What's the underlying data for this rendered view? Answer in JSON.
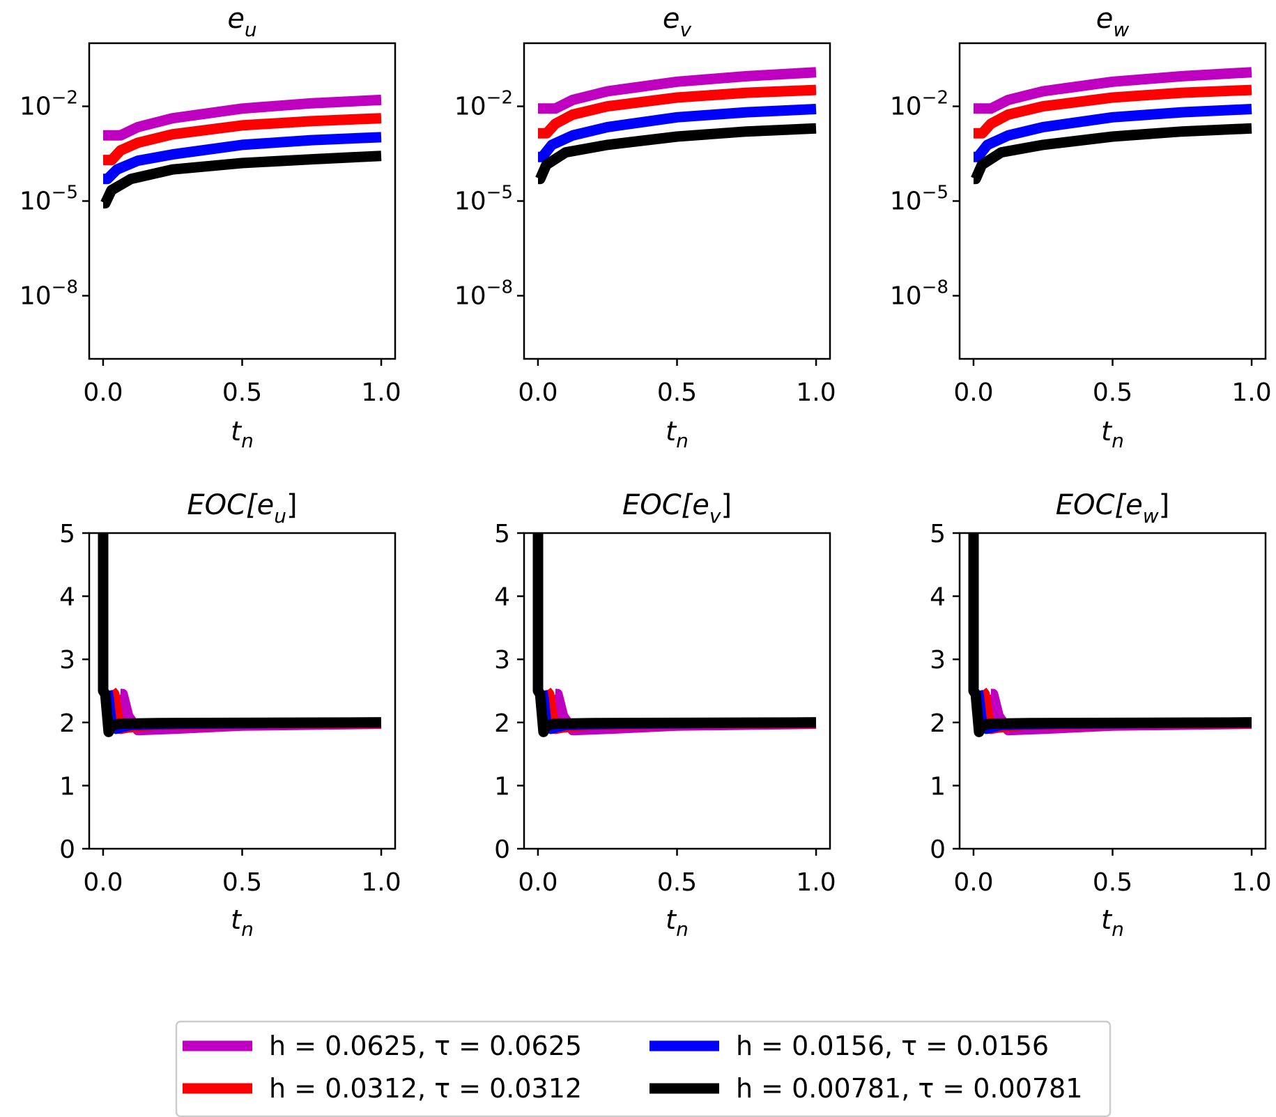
{
  "figure": {
    "legend": {
      "entries": [
        {
          "name": "h = 0.0625, τ = 0.0625",
          "color": "#c000c0"
        },
        {
          "name": "h = 0.0156, τ = 0.0156",
          "color": "#0000ff"
        },
        {
          "name": "h = 0.0312, τ = 0.0312",
          "color": "#ff0000"
        },
        {
          "name": "h = 0.00781, τ = 0.00781",
          "color": "#000000"
        }
      ]
    }
  },
  "chart_data": [
    {
      "type": "line",
      "title": "e_u",
      "xlabel": "t_n",
      "ylabel": "",
      "yscale": "log",
      "xlim": [
        -0.05,
        1.05
      ],
      "ylim": [
        1e-10,
        1
      ],
      "xticks": [
        "0.0",
        "0.5",
        "1.0"
      ],
      "yticks": [
        {
          "value": 0.01,
          "base": "10",
          "exp": "−2"
        },
        {
          "value": 1e-05,
          "base": "10",
          "exp": "−5"
        },
        {
          "value": 1e-08,
          "base": "10",
          "exp": "−8"
        }
      ],
      "series": [
        {
          "name": "h = 0.0625, τ = 0.0625",
          "color": "#c000c0",
          "x": [
            0,
            0.0625,
            0.125,
            0.25,
            0.5,
            0.75,
            1.0
          ],
          "y": [
            0.0012,
            0.0012,
            0.0022,
            0.0042,
            0.0085,
            0.0125,
            0.016
          ]
        },
        {
          "name": "h = 0.0312, τ = 0.0312",
          "color": "#ff0000",
          "x": [
            0,
            0.0312,
            0.0625,
            0.125,
            0.25,
            0.5,
            0.75,
            1.0
          ],
          "y": [
            0.0002,
            0.0002,
            0.0004,
            0.0007,
            0.0013,
            0.0025,
            0.0034,
            0.0042
          ]
        },
        {
          "name": "h = 0.0156, τ = 0.0156",
          "color": "#0000ff",
          "x": [
            0,
            0.0156,
            0.05,
            0.125,
            0.25,
            0.5,
            0.75,
            1.0
          ],
          "y": [
            5e-05,
            5e-05,
            0.0001,
            0.00019,
            0.0003,
            0.0006,
            0.00085,
            0.00105
          ]
        },
        {
          "name": "h = 0.00781, τ = 0.00781",
          "color": "#000000",
          "x": [
            0,
            0.0078,
            0.03,
            0.1,
            0.25,
            0.5,
            0.75,
            1.0
          ],
          "y": [
            8.5e-06,
            8.5e-06,
            2.2e-05,
            5e-05,
            0.0001,
            0.00016,
            0.00021,
            0.00027
          ]
        }
      ]
    },
    {
      "type": "line",
      "title": "e_v",
      "xlabel": "t_n",
      "ylabel": "",
      "yscale": "log",
      "xlim": [
        -0.05,
        1.05
      ],
      "ylim": [
        1e-10,
        1
      ],
      "xticks": [
        "0.0",
        "0.5",
        "1.0"
      ],
      "yticks": [
        {
          "value": 0.01,
          "base": "10",
          "exp": "−2"
        },
        {
          "value": 1e-05,
          "base": "10",
          "exp": "−5"
        },
        {
          "value": 1e-08,
          "base": "10",
          "exp": "−8"
        }
      ],
      "series": [
        {
          "name": "h = 0.0625, τ = 0.0625",
          "color": "#c000c0",
          "x": [
            0,
            0.0625,
            0.125,
            0.25,
            0.5,
            0.75,
            1.0
          ],
          "y": [
            0.0085,
            0.0085,
            0.016,
            0.03,
            0.06,
            0.09,
            0.12
          ]
        },
        {
          "name": "h = 0.0312, τ = 0.0312",
          "color": "#ff0000",
          "x": [
            0,
            0.0312,
            0.0625,
            0.125,
            0.25,
            0.5,
            0.75,
            1.0
          ],
          "y": [
            0.0014,
            0.0014,
            0.0028,
            0.0055,
            0.01,
            0.019,
            0.027,
            0.033
          ]
        },
        {
          "name": "h = 0.0156, τ = 0.0156",
          "color": "#0000ff",
          "x": [
            0,
            0.0156,
            0.05,
            0.125,
            0.25,
            0.5,
            0.75,
            1.0
          ],
          "y": [
            0.00025,
            0.00025,
            0.0006,
            0.0012,
            0.0022,
            0.0045,
            0.0065,
            0.0082
          ]
        },
        {
          "name": "h = 0.00781, τ = 0.00781",
          "color": "#000000",
          "x": [
            0,
            0.0078,
            0.03,
            0.1,
            0.25,
            0.5,
            0.75,
            1.0
          ],
          "y": [
            5e-05,
            5e-05,
            0.00014,
            0.00035,
            0.0006,
            0.0011,
            0.0016,
            0.002
          ]
        }
      ]
    },
    {
      "type": "line",
      "title": "e_w",
      "xlabel": "t_n",
      "ylabel": "",
      "yscale": "log",
      "xlim": [
        -0.05,
        1.05
      ],
      "ylim": [
        1e-10,
        1
      ],
      "xticks": [
        "0.0",
        "0.5",
        "1.0"
      ],
      "yticks": [
        {
          "value": 0.01,
          "base": "10",
          "exp": "−2"
        },
        {
          "value": 1e-05,
          "base": "10",
          "exp": "−5"
        },
        {
          "value": 1e-08,
          "base": "10",
          "exp": "−8"
        }
      ],
      "series": [
        {
          "name": "h = 0.0625, τ = 0.0625",
          "color": "#c000c0",
          "x": [
            0,
            0.0625,
            0.125,
            0.25,
            0.5,
            0.75,
            1.0
          ],
          "y": [
            0.0085,
            0.0085,
            0.016,
            0.03,
            0.06,
            0.09,
            0.12
          ]
        },
        {
          "name": "h = 0.0312, τ = 0.0312",
          "color": "#ff0000",
          "x": [
            0,
            0.0312,
            0.0625,
            0.125,
            0.25,
            0.5,
            0.75,
            1.0
          ],
          "y": [
            0.0014,
            0.0014,
            0.0028,
            0.0055,
            0.01,
            0.019,
            0.027,
            0.033
          ]
        },
        {
          "name": "h = 0.0156, τ = 0.0156",
          "color": "#0000ff",
          "x": [
            0,
            0.0156,
            0.05,
            0.125,
            0.25,
            0.5,
            0.75,
            1.0
          ],
          "y": [
            0.00025,
            0.00025,
            0.0006,
            0.0012,
            0.0022,
            0.0045,
            0.0065,
            0.0082
          ]
        },
        {
          "name": "h = 0.00781, τ = 0.00781",
          "color": "#000000",
          "x": [
            0,
            0.0078,
            0.03,
            0.1,
            0.25,
            0.5,
            0.75,
            1.0
          ],
          "y": [
            5e-05,
            5e-05,
            0.00014,
            0.00035,
            0.0006,
            0.0011,
            0.0016,
            0.002
          ]
        }
      ]
    },
    {
      "type": "line",
      "title": "EOC[e_u]",
      "xlabel": "t_n",
      "ylabel": "",
      "yscale": "linear",
      "xlim": [
        -0.05,
        1.05
      ],
      "ylim": [
        0,
        5
      ],
      "xticks": [
        "0.0",
        "0.5",
        "1.0"
      ],
      "yticks": [
        {
          "value": 5,
          "label": "5"
        },
        {
          "value": 4,
          "label": "4"
        },
        {
          "value": 3,
          "label": "3"
        },
        {
          "value": 2,
          "label": "2"
        },
        {
          "value": 1,
          "label": "1"
        },
        {
          "value": 0,
          "label": "0"
        }
      ],
      "series": [
        {
          "name": "h = 0.0625, τ = 0.0625",
          "color": "#c000c0",
          "x": [
            0.0625,
            0.07,
            0.09,
            0.125,
            0.25,
            0.5,
            1.0
          ],
          "y": [
            2.45,
            2.45,
            2.1,
            1.88,
            1.9,
            1.95,
            1.98
          ]
        },
        {
          "name": "h = 0.0312, τ = 0.0312",
          "color": "#ff0000",
          "x": [
            0.0312,
            0.04,
            0.05,
            0.0625,
            0.09,
            0.2,
            0.5,
            1.0
          ],
          "y": [
            2.5,
            2.45,
            2.15,
            1.9,
            1.92,
            1.96,
            1.98,
            1.99
          ]
        },
        {
          "name": "h = 0.0156, τ = 0.0156",
          "color": "#0000ff",
          "x": [
            0.0156,
            0.02,
            0.03,
            0.047,
            0.1,
            0.3,
            1.0
          ],
          "y": [
            2.5,
            2.4,
            2.0,
            1.9,
            1.96,
            1.98,
            2.0
          ]
        },
        {
          "name": "h = 0.00781, τ = 0.00781",
          "color": "#000000",
          "x": [
            0.0,
            0.0,
            0.0078,
            0.02,
            0.031,
            0.06,
            0.2,
            1.0
          ],
          "y": [
            5.0,
            2.5,
            2.45,
            1.85,
            1.95,
            1.98,
            1.99,
            2.0
          ]
        }
      ]
    },
    {
      "type": "line",
      "title": "EOC[e_v]",
      "xlabel": "t_n",
      "ylabel": "",
      "yscale": "linear",
      "xlim": [
        -0.05,
        1.05
      ],
      "ylim": [
        0,
        5
      ],
      "xticks": [
        "0.0",
        "0.5",
        "1.0"
      ],
      "yticks": [
        {
          "value": 5,
          "label": "5"
        },
        {
          "value": 4,
          "label": "4"
        },
        {
          "value": 3,
          "label": "3"
        },
        {
          "value": 2,
          "label": "2"
        },
        {
          "value": 1,
          "label": "1"
        },
        {
          "value": 0,
          "label": "0"
        }
      ],
      "series": [
        {
          "name": "h = 0.0625, τ = 0.0625",
          "color": "#c000c0",
          "x": [
            0.0625,
            0.07,
            0.09,
            0.125,
            0.25,
            0.5,
            1.0
          ],
          "y": [
            2.45,
            2.45,
            2.1,
            1.88,
            1.9,
            1.95,
            1.98
          ]
        },
        {
          "name": "h = 0.0312, τ = 0.0312",
          "color": "#ff0000",
          "x": [
            0.0312,
            0.04,
            0.05,
            0.0625,
            0.09,
            0.2,
            0.5,
            1.0
          ],
          "y": [
            2.5,
            2.45,
            2.15,
            1.9,
            1.92,
            1.96,
            1.98,
            1.99
          ]
        },
        {
          "name": "h = 0.0156, τ = 0.0156",
          "color": "#0000ff",
          "x": [
            0.0156,
            0.02,
            0.03,
            0.047,
            0.1,
            0.3,
            1.0
          ],
          "y": [
            2.5,
            2.4,
            2.0,
            1.9,
            1.96,
            1.98,
            2.0
          ]
        },
        {
          "name": "h = 0.00781, τ = 0.00781",
          "color": "#000000",
          "x": [
            0.0,
            0.0,
            0.0078,
            0.02,
            0.031,
            0.06,
            0.2,
            1.0
          ],
          "y": [
            5.0,
            2.5,
            2.45,
            1.85,
            1.95,
            1.98,
            1.99,
            2.0
          ]
        }
      ]
    },
    {
      "type": "line",
      "title": "EOC[e_w]",
      "xlabel": "t_n",
      "ylabel": "",
      "yscale": "linear",
      "xlim": [
        -0.05,
        1.05
      ],
      "ylim": [
        0,
        5
      ],
      "xticks": [
        "0.0",
        "0.5",
        "1.0"
      ],
      "yticks": [
        {
          "value": 5,
          "label": "5"
        },
        {
          "value": 4,
          "label": "4"
        },
        {
          "value": 3,
          "label": "3"
        },
        {
          "value": 2,
          "label": "2"
        },
        {
          "value": 1,
          "label": "1"
        },
        {
          "value": 0,
          "label": "0"
        }
      ],
      "series": [
        {
          "name": "h = 0.0625, τ = 0.0625",
          "color": "#c000c0",
          "x": [
            0.0625,
            0.07,
            0.09,
            0.125,
            0.25,
            0.5,
            1.0
          ],
          "y": [
            2.45,
            2.45,
            2.1,
            1.88,
            1.9,
            1.95,
            1.98
          ]
        },
        {
          "name": "h = 0.0312, τ = 0.0312",
          "color": "#ff0000",
          "x": [
            0.0312,
            0.04,
            0.05,
            0.0625,
            0.09,
            0.2,
            0.5,
            1.0
          ],
          "y": [
            2.5,
            2.45,
            2.15,
            1.9,
            1.92,
            1.96,
            1.98,
            1.99
          ]
        },
        {
          "name": "h = 0.0156, τ = 0.0156",
          "color": "#0000ff",
          "x": [
            0.0156,
            0.02,
            0.03,
            0.047,
            0.1,
            0.3,
            1.0
          ],
          "y": [
            2.5,
            2.4,
            2.0,
            1.9,
            1.96,
            1.98,
            2.0
          ]
        },
        {
          "name": "h = 0.00781, τ = 0.00781",
          "color": "#000000",
          "x": [
            0.0,
            0.0,
            0.0078,
            0.02,
            0.031,
            0.06,
            0.2,
            1.0
          ],
          "y": [
            5.0,
            2.5,
            2.45,
            1.85,
            1.95,
            1.98,
            1.99,
            2.0
          ]
        }
      ]
    }
  ]
}
